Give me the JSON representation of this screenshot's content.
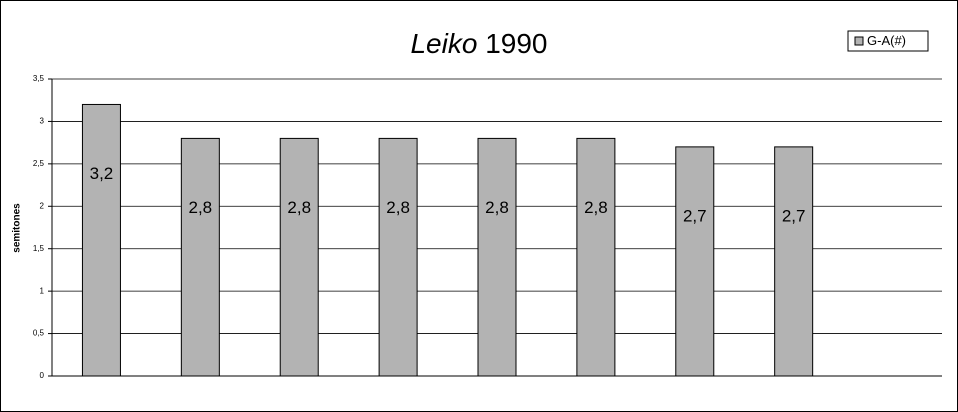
{
  "chart_data": {
    "type": "bar",
    "title": [
      "Leiko",
      "1990"
    ],
    "y_label": "semitones",
    "categories": [
      null,
      null,
      null,
      null,
      null,
      null,
      null,
      null
    ],
    "series": [
      {
        "name": "G-A(#)",
        "color": "#b3b3b3",
        "values": [
          3.2,
          2.8,
          2.8,
          2.8,
          2.8,
          2.8,
          2.7,
          2.7
        ],
        "value_labels": [
          "3,2",
          "2,8",
          "2,8",
          "2,8",
          "2,8",
          "2,8",
          "2,7",
          "2,7"
        ]
      }
    ],
    "ylim": [
      0,
      3.5
    ],
    "yticks": [
      0,
      {
        "value": 0.5,
        "label": "0,5"
      },
      1,
      {
        "value": 1.5,
        "label": "1,5"
      },
      2,
      {
        "value": 2.5,
        "label": "2,5"
      },
      3,
      {
        "value": 3.5,
        "label": "3,5"
      }
    ],
    "grid": true,
    "legend": "top-right"
  }
}
